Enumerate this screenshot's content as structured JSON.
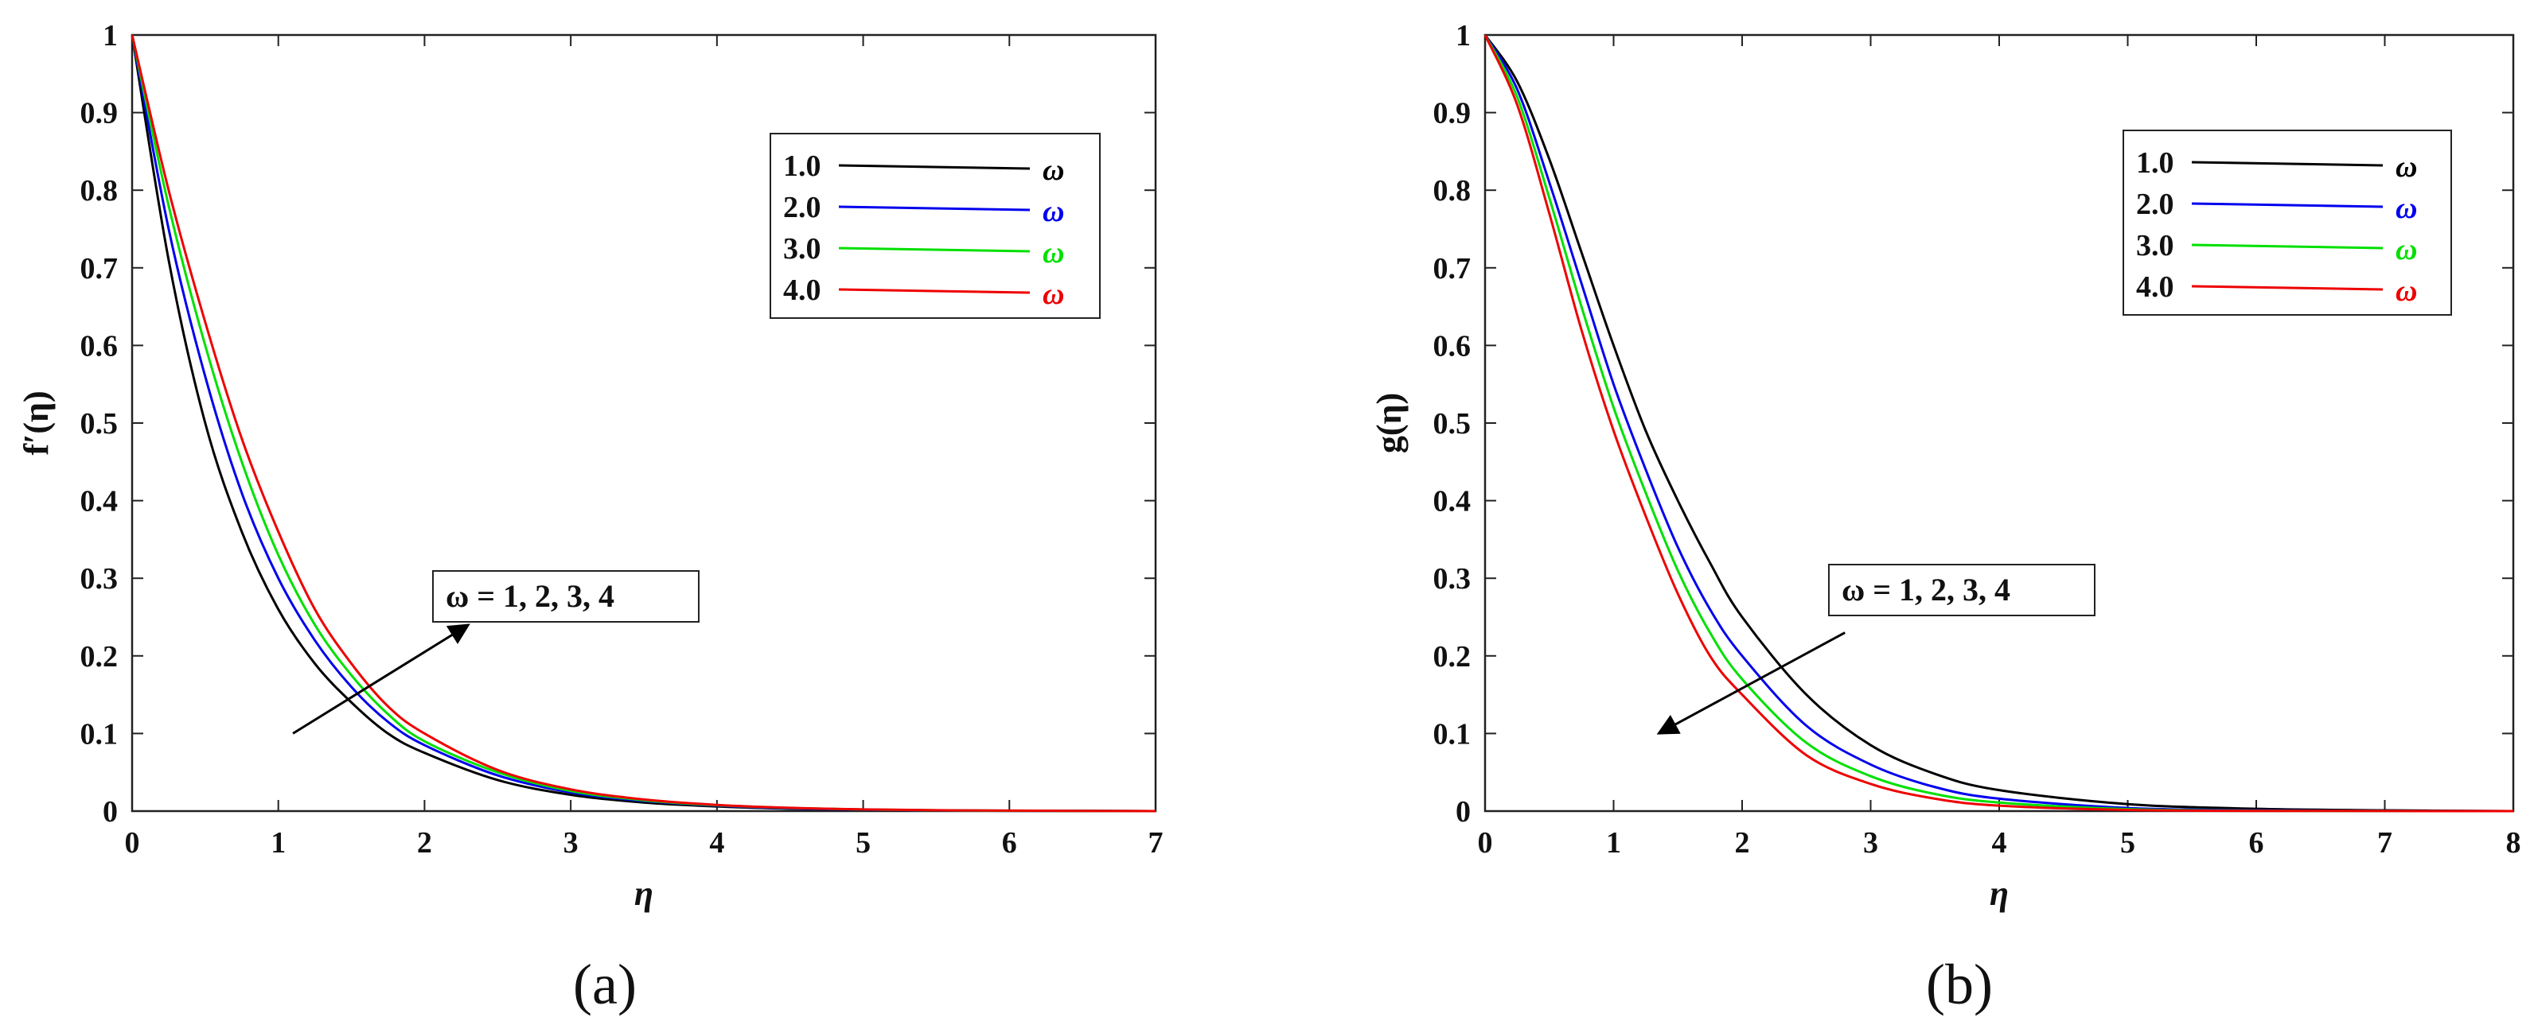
{
  "chart_data": [
    {
      "type": "line",
      "panel_label": "(a)",
      "xlabel": "η",
      "ylabel": "f′(η)",
      "xlim": [
        0,
        7
      ],
      "ylim": [
        0,
        1
      ],
      "xticks": [
        0,
        1,
        2,
        3,
        4,
        5,
        6,
        7
      ],
      "yticks": [
        0,
        0.1,
        0.2,
        0.3,
        0.4,
        0.5,
        0.6,
        0.7,
        0.8,
        0.9,
        1
      ],
      "grid": false,
      "legend_position": "top-right",
      "x": [
        0,
        0.25,
        0.5,
        0.75,
        1,
        1.25,
        1.5,
        1.75,
        2,
        2.5,
        3,
        3.5,
        4,
        4.5,
        5,
        5.5,
        6,
        7
      ],
      "series": [
        {
          "name": "1.0",
          "symbol": "ω",
          "color": "#000000",
          "values": [
            1,
            0.71,
            0.5,
            0.36,
            0.26,
            0.19,
            0.14,
            0.1,
            0.075,
            0.04,
            0.021,
            0.011,
            0.006,
            0.003,
            0.0015,
            0.0008,
            0.0004,
            0
          ]
        },
        {
          "name": "2.0",
          "symbol": "ω",
          "color": "#0000ee",
          "values": [
            1,
            0.75,
            0.56,
            0.41,
            0.3,
            0.22,
            0.16,
            0.115,
            0.085,
            0.046,
            0.024,
            0.013,
            0.007,
            0.0035,
            0.0018,
            0.0009,
            0.0005,
            0
          ]
        },
        {
          "name": "3.0",
          "symbol": "ω",
          "color": "#00e000",
          "values": [
            1,
            0.78,
            0.6,
            0.45,
            0.33,
            0.24,
            0.175,
            0.125,
            0.09,
            0.05,
            0.026,
            0.014,
            0.0075,
            0.004,
            0.002,
            0.001,
            0.0005,
            0
          ]
        },
        {
          "name": "4.0",
          "symbol": "ω",
          "color": "#ee0000",
          "values": [
            1,
            0.8,
            0.63,
            0.48,
            0.36,
            0.26,
            0.19,
            0.135,
            0.1,
            0.053,
            0.028,
            0.015,
            0.008,
            0.0042,
            0.0022,
            0.0011,
            0.0006,
            0
          ]
        }
      ],
      "annotation": {
        "text": "ω = 1, 2, 3, 4",
        "arrow_from": [
          1.1,
          0.1
        ],
        "arrow_to": [
          2.3,
          0.24
        ]
      }
    },
    {
      "type": "line",
      "panel_label": "(b)",
      "xlabel": "η",
      "ylabel": "g(η)",
      "xlim": [
        0,
        8
      ],
      "ylim": [
        0,
        1
      ],
      "xticks": [
        0,
        1,
        2,
        3,
        4,
        5,
        6,
        7,
        8
      ],
      "yticks": [
        0,
        0.1,
        0.2,
        0.3,
        0.4,
        0.5,
        0.6,
        0.7,
        0.8,
        0.9,
        1
      ],
      "grid": false,
      "legend_position": "top-right",
      "x": [
        0,
        0.25,
        0.5,
        0.75,
        1,
        1.25,
        1.5,
        1.75,
        2,
        2.5,
        3,
        3.5,
        4,
        5,
        6,
        7,
        8
      ],
      "series": [
        {
          "name": "1.0",
          "symbol": "ω",
          "color": "#000000",
          "values": [
            1,
            0.94,
            0.84,
            0.72,
            0.6,
            0.49,
            0.4,
            0.32,
            0.25,
            0.15,
            0.085,
            0.048,
            0.027,
            0.009,
            0.003,
            0.001,
            0
          ]
        },
        {
          "name": "2.0",
          "symbol": "ω",
          "color": "#0000ee",
          "values": [
            1,
            0.93,
            0.81,
            0.68,
            0.55,
            0.44,
            0.34,
            0.26,
            0.2,
            0.11,
            0.06,
            0.031,
            0.016,
            0.004,
            0.001,
            0.0003,
            0
          ]
        },
        {
          "name": "3.0",
          "symbol": "ω",
          "color": "#00e000",
          "values": [
            1,
            0.92,
            0.79,
            0.65,
            0.52,
            0.41,
            0.31,
            0.23,
            0.17,
            0.088,
            0.045,
            0.022,
            0.011,
            0.0025,
            0.0005,
            0.0001,
            0
          ]
        },
        {
          "name": "4.0",
          "symbol": "ω",
          "color": "#ee0000",
          "values": [
            1,
            0.91,
            0.77,
            0.62,
            0.49,
            0.38,
            0.28,
            0.2,
            0.15,
            0.072,
            0.035,
            0.016,
            0.007,
            0.0015,
            0.0003,
            0.0001,
            0
          ]
        }
      ],
      "annotation": {
        "text": "ω = 1, 2, 3, 4",
        "arrow_from": [
          2.8,
          0.23
        ],
        "arrow_to": [
          1.35,
          0.1
        ]
      }
    }
  ]
}
